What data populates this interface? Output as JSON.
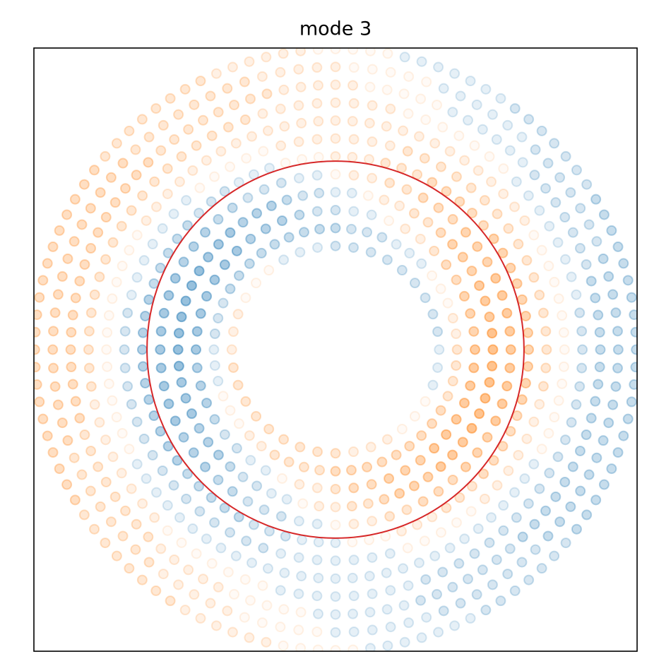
{
  "chart_data": {
    "type": "ring_scatter",
    "title": "mode 3",
    "xlim": [
      -1.6,
      1.6
    ],
    "ylim": [
      -1.6,
      1.6
    ],
    "clim": [
      -6,
      6
    ],
    "positive_color": "#ff7f0e",
    "negative_color": "#1f77b4",
    "circle": {
      "radius": 1,
      "color": "#d62728"
    },
    "rings": [
      {
        "radius": 0.55,
        "values": [
          -1,
          -2,
          -2,
          -2,
          -2,
          -2,
          -2,
          -2,
          -2,
          -2,
          -1,
          -1,
          -1,
          0,
          0,
          0,
          1,
          1,
          1,
          2,
          2,
          2,
          2,
          2,
          2,
          2,
          2,
          2,
          1,
          1,
          1,
          0,
          0,
          0,
          -1,
          -1
        ]
      },
      {
        "radius": 0.645,
        "values": [
          2,
          1,
          1,
          0,
          0,
          0,
          -1,
          -1,
          -1,
          -2,
          -2,
          -2,
          -3,
          -3,
          -3,
          -3,
          -3,
          -3,
          -3,
          -3,
          -3,
          -2,
          -2,
          -2,
          -1,
          -1,
          -1,
          0,
          0,
          0,
          1,
          1,
          2,
          2,
          2,
          2,
          3,
          3,
          3,
          3,
          3,
          3,
          3,
          3,
          3,
          2,
          2,
          2
        ]
      },
      {
        "radius": 0.74,
        "values": [
          5,
          4,
          4,
          4,
          3,
          3,
          2,
          1,
          1,
          0,
          -1,
          -1,
          -2,
          -2,
          -3,
          -4,
          -4,
          -4,
          -5,
          -5,
          -5,
          -5,
          -5,
          -5,
          -5,
          -4,
          -4,
          -4,
          -3,
          -2,
          -2,
          -1,
          -1,
          0,
          1,
          1,
          2,
          3,
          3,
          4,
          4,
          4,
          5,
          5,
          5,
          5,
          5,
          5
        ]
      },
      {
        "radius": 0.835,
        "values": [
          6,
          6,
          5,
          5,
          5,
          4,
          4,
          4,
          3,
          2,
          2,
          1,
          1,
          0,
          -1,
          -1,
          -2,
          -2,
          -3,
          -4,
          -4,
          -4,
          -5,
          -5,
          -5,
          -6,
          -6,
          -6,
          -6,
          -6,
          -6,
          -6,
          -5,
          -5,
          -5,
          -4,
          -4,
          -4,
          -3,
          -2,
          -2,
          -1,
          -1,
          0,
          1,
          1,
          2,
          2,
          3,
          4,
          4,
          4,
          5,
          5,
          5,
          6,
          6,
          6,
          6,
          6
        ]
      },
      {
        "radius": 0.93,
        "values": [
          5,
          5,
          5,
          5,
          5,
          4,
          4,
          4,
          3,
          3,
          3,
          2,
          2,
          1,
          1,
          0,
          -1,
          -1,
          -2,
          -2,
          -2,
          -3,
          -3,
          -4,
          -4,
          -4,
          -5,
          -5,
          -5,
          -5,
          -5,
          -5,
          -5,
          -5,
          -5,
          -4,
          -4,
          -4,
          -3,
          -3,
          -2,
          -2,
          -2,
          -1,
          -1,
          0,
          1,
          1,
          2,
          2,
          3,
          3,
          3,
          4,
          4,
          4,
          5,
          5,
          5,
          5
        ]
      },
      {
        "radius": 1.025,
        "values": [
          4,
          4,
          4,
          4,
          4,
          4,
          4,
          4,
          3,
          3,
          3,
          3,
          3,
          2,
          2,
          2,
          1,
          1,
          1,
          0,
          0,
          0,
          -1,
          -1,
          -1,
          -2,
          -2,
          -2,
          -3,
          -3,
          -3,
          -3,
          -3,
          -4,
          -4,
          -4,
          -4,
          -4,
          -4,
          -4,
          -4,
          -4,
          -4,
          -4,
          -3,
          -3,
          -3,
          -3,
          -3,
          -2,
          -2,
          -2,
          -1,
          -1,
          -1,
          0,
          0,
          0,
          1,
          1,
          1,
          2,
          2,
          2,
          3,
          3,
          3,
          3,
          3,
          4,
          4,
          4
        ]
      },
      {
        "radius": 1.12,
        "values": [
          2,
          2,
          2,
          2,
          2,
          2,
          2,
          2,
          2,
          2,
          2,
          2,
          2,
          2,
          2,
          1,
          1,
          1,
          1,
          1,
          1,
          1,
          0,
          0,
          0,
          0,
          0,
          -1,
          -1,
          -1,
          -1,
          -1,
          -1,
          -1,
          -2,
          -2,
          -2,
          -2,
          -2,
          -2,
          -2,
          -2,
          -2,
          -2,
          -2,
          -2,
          -2,
          -2,
          -2,
          -2,
          -2,
          -1,
          -1,
          -1,
          -1,
          -1,
          -1,
          -1,
          0,
          0,
          0,
          0,
          0,
          1,
          1,
          1,
          1,
          1,
          1,
          1,
          2,
          2
        ]
      },
      {
        "radius": 1.215,
        "values": [
          0,
          0,
          0,
          0,
          0,
          0,
          0,
          0,
          1,
          1,
          1,
          1,
          1,
          1,
          1,
          1,
          1,
          1,
          1,
          1,
          1,
          1,
          1,
          1,
          1,
          1,
          1,
          1,
          1,
          1,
          1,
          1,
          1,
          1,
          1,
          0,
          0,
          0,
          0,
          0,
          0,
          0,
          0,
          0,
          0,
          0,
          0,
          0,
          0,
          -1,
          -1,
          -1,
          -1,
          -1,
          -1,
          -1,
          -1,
          -1,
          -1,
          -1,
          -1,
          -1,
          -1,
          -1,
          -1,
          -1,
          -1,
          -1,
          -1,
          -1,
          -1,
          -1,
          -1,
          -1,
          -1,
          -1,
          -1,
          -1,
          0,
          0,
          0,
          0,
          0,
          0
        ]
      },
      {
        "radius": 1.31,
        "values": [
          -2,
          -2,
          -2,
          -1,
          -1,
          -1,
          -1,
          -1,
          -1,
          -1,
          -1,
          0,
          0,
          0,
          0,
          0,
          0,
          0,
          1,
          1,
          1,
          1,
          1,
          1,
          1,
          1,
          2,
          2,
          2,
          2,
          2,
          2,
          2,
          2,
          2,
          2,
          2,
          2,
          2,
          2,
          2,
          2,
          2,
          2,
          2,
          1,
          1,
          1,
          1,
          1,
          1,
          1,
          1,
          0,
          0,
          0,
          0,
          0,
          0,
          0,
          -1,
          -1,
          -1,
          -1,
          -1,
          -1,
          -1,
          -1,
          -2,
          -2,
          -2,
          -2,
          -2,
          -2,
          -2,
          -2,
          -2,
          -2,
          -2,
          -2,
          -2,
          -2,
          -2,
          -2
        ]
      },
      {
        "radius": 1.405,
        "values": [
          -3,
          -3,
          -3,
          -3,
          -3,
          -2,
          -2,
          -2,
          -2,
          -2,
          -2,
          -2,
          -1,
          -1,
          -1,
          -1,
          -1,
          -1,
          0,
          0,
          0,
          0,
          0,
          1,
          1,
          1,
          1,
          1,
          2,
          2,
          2,
          2,
          2,
          2,
          2,
          2,
          3,
          3,
          3,
          3,
          3,
          3,
          3,
          3,
          3,
          3,
          3,
          3,
          3,
          3,
          3,
          3,
          3,
          2,
          2,
          2,
          2,
          2,
          2,
          2,
          2,
          1,
          1,
          1,
          1,
          1,
          0,
          0,
          0,
          0,
          0,
          -1,
          -1,
          -1,
          -1,
          -1,
          -1,
          -2,
          -2,
          -2,
          -2,
          -2,
          -2,
          -2,
          -3,
          -3,
          -3,
          -3,
          -3,
          -3,
          -3,
          -3,
          -3,
          -3,
          -3,
          -3
        ]
      },
      {
        "radius": 1.5,
        "values": [
          -3,
          -3,
          -3,
          -3,
          -3,
          -3,
          -2,
          -2,
          -2,
          -2,
          -2,
          -2,
          -2,
          -1,
          -1,
          -1,
          -1,
          -1,
          -1,
          0,
          0,
          0,
          0,
          0,
          1,
          1,
          1,
          1,
          1,
          2,
          2,
          2,
          2,
          2,
          2,
          2,
          2,
          3,
          3,
          3,
          3,
          3,
          3,
          3,
          3,
          3,
          3,
          3,
          3,
          3,
          3,
          3,
          3,
          3,
          2,
          2,
          2,
          2,
          2,
          2,
          2,
          2,
          1,
          1,
          1,
          1,
          1,
          0,
          0,
          0,
          0,
          0,
          -1,
          -1,
          -1,
          -1,
          -1,
          -1,
          -2,
          -2,
          -2,
          -2,
          -2,
          -2,
          -2,
          -3,
          -3,
          -3,
          -3,
          -3,
          -3,
          -3,
          -3,
          -3,
          -3,
          -3
        ]
      },
      {
        "radius": 1.595,
        "values": [
          -3,
          -3,
          -3,
          -3,
          -3,
          -3,
          -3,
          -3,
          -3,
          -3,
          -2,
          -2,
          -2,
          -2,
          -2,
          -2,
          -2,
          -1,
          -1,
          -1,
          -1,
          -1,
          -1,
          -1,
          0,
          0,
          0,
          0,
          0,
          1,
          1,
          1,
          1,
          1,
          1,
          2,
          2,
          2,
          2,
          2,
          2,
          2,
          2,
          3,
          3,
          3,
          3,
          3,
          3,
          3,
          3,
          3,
          3,
          3,
          3,
          3,
          3,
          3,
          3,
          3,
          3,
          3,
          3,
          3,
          2,
          2,
          2,
          2,
          2,
          2,
          2,
          2,
          1,
          1,
          1,
          1,
          1,
          1,
          0,
          0,
          0,
          0,
          0,
          -1,
          -1,
          -1,
          -1,
          -1,
          -1,
          -1,
          -2,
          -2,
          -2,
          -2,
          -2,
          -2,
          -2,
          -3,
          -3,
          -3,
          -3,
          -3,
          -3,
          -3,
          -3,
          -3,
          -3,
          -3
        ]
      }
    ]
  }
}
